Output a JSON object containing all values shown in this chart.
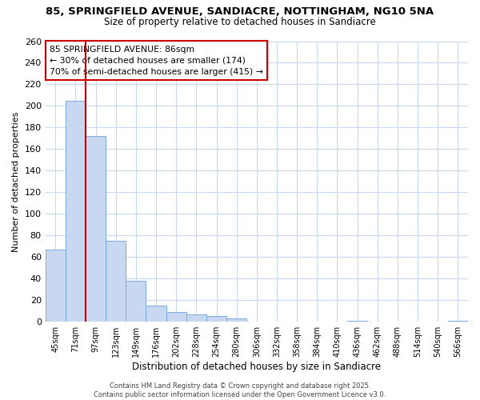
{
  "title_line1": "85, SPRINGFIELD AVENUE, SANDIACRE, NOTTINGHAM, NG10 5NA",
  "title_line2": "Size of property relative to detached houses in Sandiacre",
  "xlabel": "Distribution of detached houses by size in Sandiacre",
  "ylabel": "Number of detached properties",
  "categories": [
    "45sqm",
    "71sqm",
    "97sqm",
    "123sqm",
    "149sqm",
    "176sqm",
    "202sqm",
    "228sqm",
    "254sqm",
    "280sqm",
    "306sqm",
    "332sqm",
    "358sqm",
    "384sqm",
    "410sqm",
    "436sqm",
    "462sqm",
    "488sqm",
    "514sqm",
    "540sqm",
    "566sqm"
  ],
  "values": [
    67,
    205,
    172,
    75,
    38,
    15,
    9,
    7,
    5,
    3,
    0,
    0,
    0,
    0,
    0,
    1,
    0,
    0,
    0,
    0,
    1
  ],
  "bar_color": "#c8d8f0",
  "bar_edge_color": "#7aaadd",
  "vline_x": 1.5,
  "vline_color": "#cc0000",
  "annotation_title": "85 SPRINGFIELD AVENUE: 86sqm",
  "annotation_line2": "← 30% of detached houses are smaller (174)",
  "annotation_line3": "70% of semi-detached houses are larger (415) →",
  "annotation_box_color": "#cc0000",
  "footer_line1": "Contains HM Land Registry data © Crown copyright and database right 2025.",
  "footer_line2": "Contains public sector information licensed under the Open Government Licence v3.0.",
  "ylim": [
    0,
    260
  ],
  "yticks": [
    0,
    20,
    40,
    60,
    80,
    100,
    120,
    140,
    160,
    180,
    200,
    220,
    240,
    260
  ],
  "background_color": "#ffffff",
  "grid_color": "#c8d8f0"
}
